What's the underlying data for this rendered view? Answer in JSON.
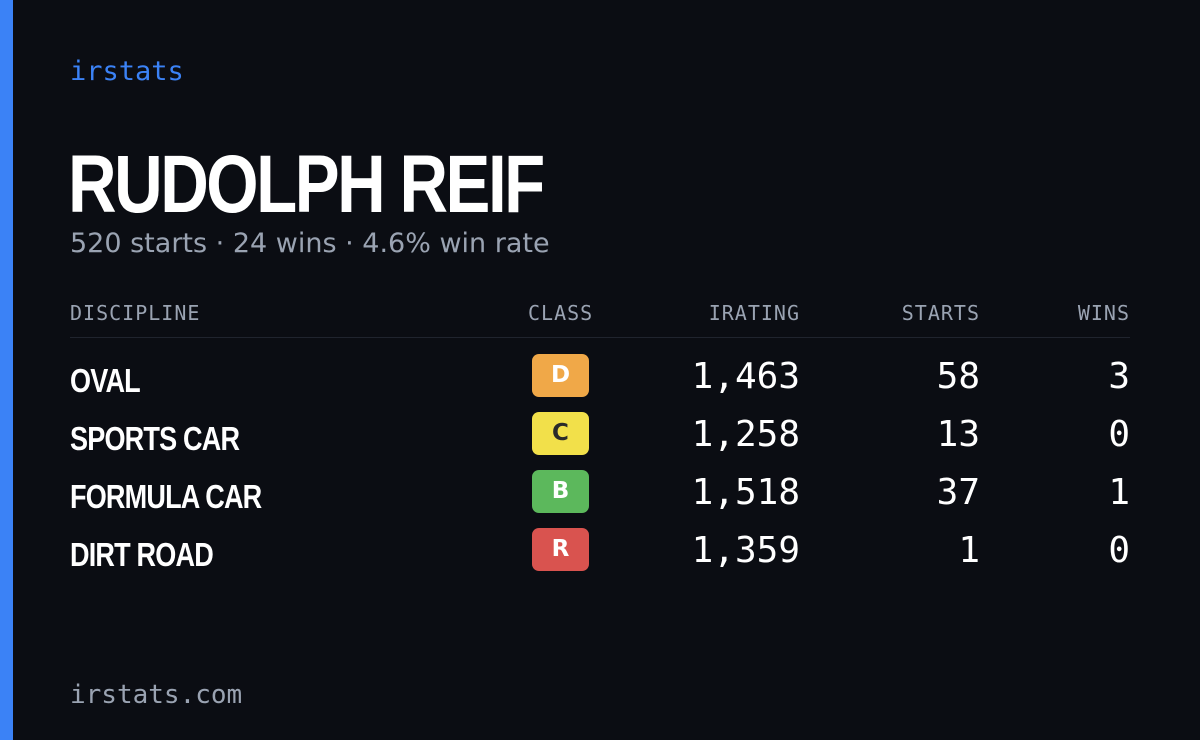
{
  "brand": "irstats",
  "driver": {
    "name": "RUDOLPH REIF",
    "summary": "520 starts · 24 wins · 4.6% win rate"
  },
  "table": {
    "headers": {
      "discipline": "DISCIPLINE",
      "class": "CLASS",
      "irating": "IRATING",
      "starts": "STARTS",
      "wins": "WINS"
    },
    "rows": [
      {
        "discipline": "OVAL",
        "class": "D",
        "class_color": "#f0a848",
        "class_text_color": "#ffffff",
        "irating": "1,463",
        "starts": "58",
        "wins": "3"
      },
      {
        "discipline": "SPORTS CAR",
        "class": "C",
        "class_color": "#f2e04a",
        "class_text_color": "#2a2a2a",
        "irating": "1,258",
        "starts": "13",
        "wins": "0"
      },
      {
        "discipline": "FORMULA CAR",
        "class": "B",
        "class_color": "#5cb85c",
        "class_text_color": "#ffffff",
        "irating": "1,518",
        "starts": "37",
        "wins": "1"
      },
      {
        "discipline": "DIRT ROAD",
        "class": "R",
        "class_color": "#d9534f",
        "class_text_color": "#ffffff",
        "irating": "1,359",
        "starts": "1",
        "wins": "0"
      }
    ]
  },
  "footer": "irstats.com",
  "colors": {
    "accent": "#3b82f6",
    "background": "#0b0d13",
    "muted": "#9aa3b2"
  }
}
